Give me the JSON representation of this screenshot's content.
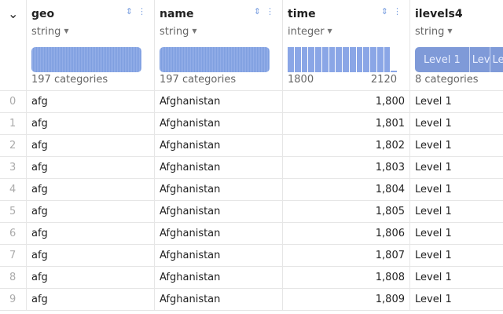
{
  "columns": [
    {
      "name": "geo",
      "type": "string",
      "summary": "197 categories"
    },
    {
      "name": "name",
      "type": "string",
      "summary": "197 categories"
    },
    {
      "name": "time",
      "type": "integer",
      "min": "1800",
      "max": "2120"
    },
    {
      "name": "ilevels4",
      "type": "string",
      "summary": "8 categories",
      "levels": [
        "Level 1",
        "Lev",
        "Le"
      ]
    }
  ],
  "rows": [
    {
      "i": "0",
      "geo": "afg",
      "name": "Afghanistan",
      "time": "1,800",
      "lvl": "Level 1"
    },
    {
      "i": "1",
      "geo": "afg",
      "name": "Afghanistan",
      "time": "1,801",
      "lvl": "Level 1"
    },
    {
      "i": "2",
      "geo": "afg",
      "name": "Afghanistan",
      "time": "1,802",
      "lvl": "Level 1"
    },
    {
      "i": "3",
      "geo": "afg",
      "name": "Afghanistan",
      "time": "1,803",
      "lvl": "Level 1"
    },
    {
      "i": "4",
      "geo": "afg",
      "name": "Afghanistan",
      "time": "1,804",
      "lvl": "Level 1"
    },
    {
      "i": "5",
      "geo": "afg",
      "name": "Afghanistan",
      "time": "1,805",
      "lvl": "Level 1"
    },
    {
      "i": "6",
      "geo": "afg",
      "name": "Afghanistan",
      "time": "1,806",
      "lvl": "Level 1"
    },
    {
      "i": "7",
      "geo": "afg",
      "name": "Afghanistan",
      "time": "1,807",
      "lvl": "Level 1"
    },
    {
      "i": "8",
      "geo": "afg",
      "name": "Afghanistan",
      "time": "1,808",
      "lvl": "Level 1"
    },
    {
      "i": "9",
      "geo": "afg",
      "name": "Afghanistan",
      "time": "1,809",
      "lvl": "Level 1"
    }
  ]
}
